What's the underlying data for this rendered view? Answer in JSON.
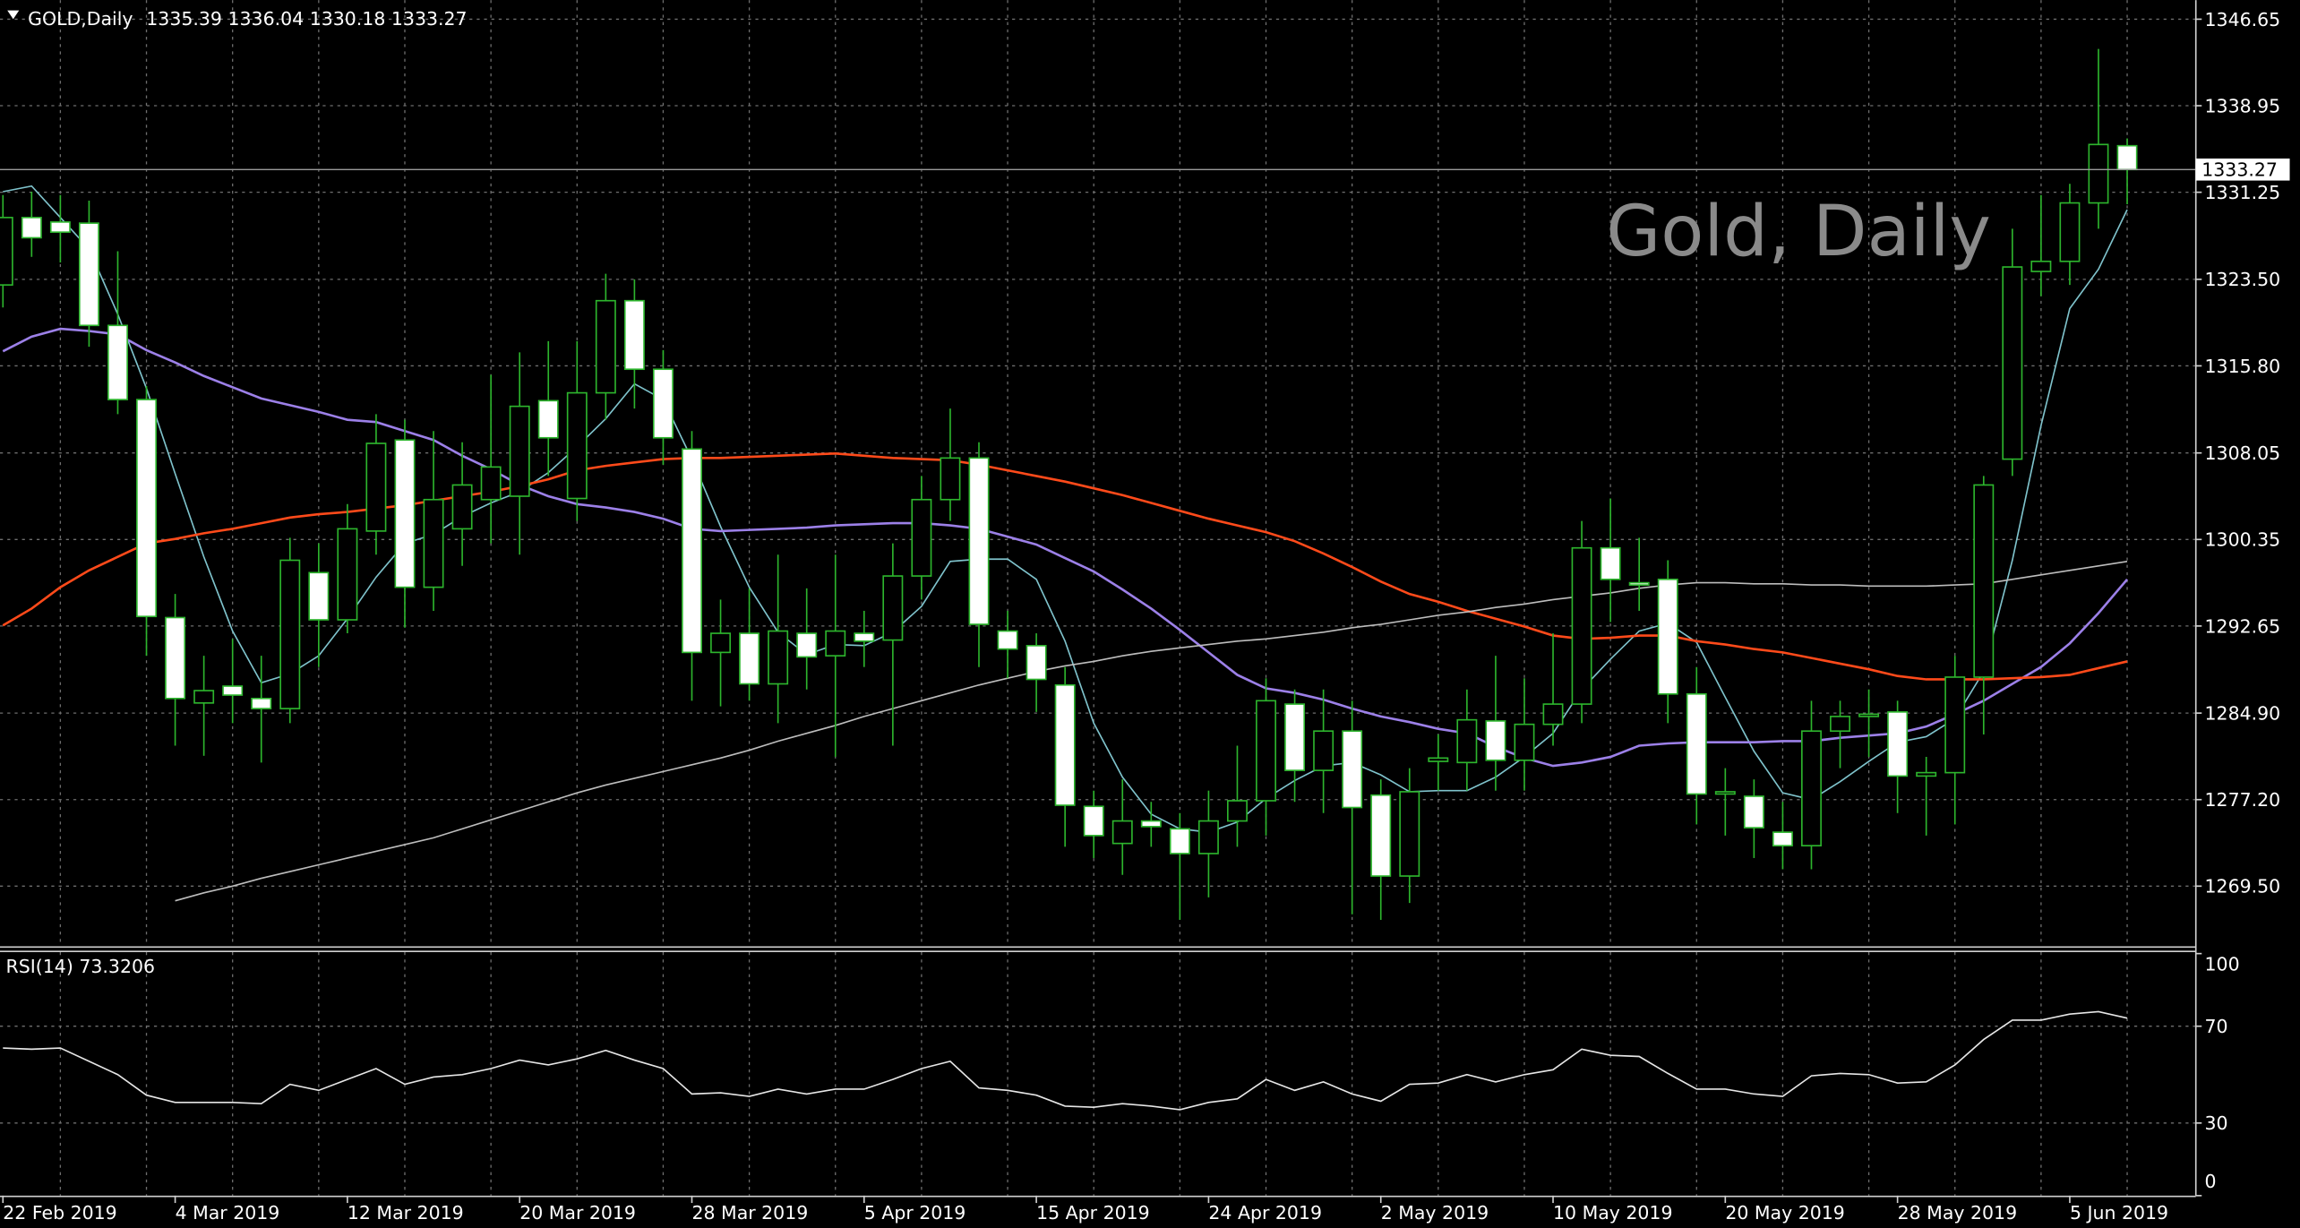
{
  "chart_data": [
    {
      "type": "candlestick",
      "symbol": "GOLD,Daily",
      "watermark": "Gold, Daily",
      "categories": [
        "22 Feb 2019",
        null,
        null,
        null,
        null,
        null,
        "4 Mar 2019",
        null,
        null,
        null,
        null,
        null,
        "12 Mar 2019",
        null,
        null,
        null,
        null,
        null,
        "20 Mar 2019",
        null,
        null,
        null,
        null,
        null,
        "28 Mar 2019",
        null,
        null,
        null,
        null,
        null,
        "5 Apr 2019",
        null,
        null,
        null,
        null,
        null,
        "15 Apr 2019",
        null,
        null,
        null,
        null,
        null,
        "24 Apr 2019",
        null,
        null,
        null,
        null,
        null,
        "2 May 2019",
        null,
        null,
        null,
        null,
        null,
        "10 May 2019",
        null,
        null,
        null,
        null,
        null,
        "20 May 2019",
        null,
        null,
        null,
        null,
        null,
        "28 May 2019",
        null,
        null,
        null,
        null,
        null,
        "5 Jun 2019",
        null,
        null
      ],
      "open": [
        1323,
        1329,
        1328.6,
        1328.5,
        1319.4,
        1312.8,
        1293.4,
        1285.8,
        1287.3,
        1286.2,
        1285.3,
        1297.4,
        1293.2,
        1301.1,
        1309.2,
        1296.1,
        1301.3,
        1303.9,
        1304.2,
        1312.7,
        1304,
        1313.4,
        1321.6,
        1315.5,
        1308.4,
        1290.3,
        1292,
        1287.5,
        1292,
        1290,
        1292,
        1291.4,
        1297.1,
        1303.9,
        1307.6,
        1292.2,
        1290.9,
        1287.4,
        1276.6,
        1273.3,
        1275.3,
        1274.6,
        1272.4,
        1275.3,
        1277.1,
        1285.7,
        1279.8,
        1283.3,
        1277.6,
        1270.4,
        1280.6,
        1280.5,
        1284.2,
        1280.7,
        1283.9,
        1285.7,
        1299.6,
        1296.5,
        1296.8,
        1286.6,
        1277.7,
        1277.5,
        1274.3,
        1273.1,
        1283.3,
        1284.6,
        1285,
        1279.3,
        1279.6,
        1288.1,
        1307.5,
        1324.2,
        1325.1,
        1330.3,
        1335.39
      ],
      "high": [
        1331,
        1331.3,
        1331,
        1330.5,
        1326,
        1314,
        1295.5,
        1290,
        1291.5,
        1290,
        1300.5,
        1300,
        1303.5,
        1311.5,
        1311,
        1310,
        1309,
        1315,
        1317,
        1318,
        1318,
        1324,
        1323.5,
        1317.2,
        1310,
        1295,
        1296,
        1299,
        1296,
        1299,
        1294,
        1300,
        1306,
        1312,
        1309,
        1294,
        1292,
        1289,
        1278,
        1279,
        1277,
        1276,
        1278,
        1282,
        1288,
        1287,
        1287,
        1286,
        1279,
        1280,
        1283,
        1287,
        1290,
        1288,
        1292,
        1302,
        1304,
        1300.5,
        1298.5,
        1289,
        1280,
        1279,
        1277,
        1286,
        1286,
        1287,
        1286,
        1281,
        1290,
        1306,
        1328,
        1331,
        1332,
        1344,
        1336.04
      ],
      "low": [
        1321,
        1325.5,
        1325,
        1317.5,
        1311.5,
        1290,
        1282,
        1281.1,
        1284,
        1280.5,
        1284,
        1289,
        1292,
        1299,
        1292.5,
        1294,
        1298,
        1300,
        1299,
        1306,
        1302,
        1311,
        1312,
        1307,
        1286,
        1285.5,
        1286,
        1284,
        1287,
        1281,
        1289,
        1282,
        1295,
        1302,
        1289,
        1288,
        1285,
        1273,
        1272,
        1270.5,
        1273,
        1266.5,
        1268.5,
        1273,
        1274,
        1277,
        1276,
        1267,
        1266.5,
        1268,
        1278,
        1278,
        1278,
        1278,
        1282,
        1284,
        1293,
        1294,
        1284,
        1275,
        1274,
        1272,
        1271,
        1271,
        1280,
        1281,
        1276,
        1274,
        1275,
        1283,
        1306,
        1322,
        1323,
        1328,
        1330.18
      ],
      "close": [
        1329,
        1327.2,
        1327.7,
        1319.4,
        1312.8,
        1293.5,
        1286.2,
        1286.9,
        1286.5,
        1285.3,
        1298.5,
        1293.2,
        1301.3,
        1308.9,
        1296.1,
        1303.9,
        1305.2,
        1306.8,
        1312.2,
        1309.4,
        1313.4,
        1321.6,
        1315.5,
        1309.4,
        1290.3,
        1292,
        1287.5,
        1292.2,
        1289.9,
        1292.2,
        1291.3,
        1297.1,
        1303.9,
        1307.6,
        1292.8,
        1290.6,
        1287.9,
        1276.7,
        1274,
        1275.3,
        1274.8,
        1272.4,
        1275.3,
        1277.1,
        1286,
        1279.8,
        1283.3,
        1276.5,
        1270.4,
        1277.9,
        1280.9,
        1284.3,
        1280.7,
        1283.9,
        1285.7,
        1299.6,
        1296.8,
        1296.3,
        1286.6,
        1277.7,
        1277.9,
        1274.7,
        1273.1,
        1283.3,
        1284.6,
        1284.8,
        1279.3,
        1279.6,
        1288.1,
        1305.2,
        1324.6,
        1325.1,
        1330.3,
        1335.5,
        1333.27
      ],
      "bull_fill": "#000000",
      "bear_fill": "#ffffff",
      "wick_color": "#2db52d",
      "series": [
        {
          "color": "#7fc3cc",
          "values": [
            1331.3,
            1331.8,
            1329.0,
            1326.2,
            1320.4,
            1313.8,
            1306.2,
            1298.8,
            1292.2,
            1287.6,
            1288.4,
            1290.0,
            1293.3,
            1297.0,
            1300.0,
            1300.8,
            1302.4,
            1303.6,
            1304.6,
            1306.3,
            1308.6,
            1311.1,
            1314.2,
            1312.8,
            1307.5,
            1301.5,
            1296.1,
            1292.1,
            1290.1,
            1291.0,
            1290.9,
            1292.1,
            1294.4,
            1298.4,
            1298.6,
            1298.6,
            1296.8,
            1291.3,
            1284.0,
            1279.2,
            1275.9,
            1274.6,
            1274.3,
            1275.2,
            1277.3,
            1278.9,
            1280.2,
            1280.5,
            1279.4,
            1277.9,
            1278.0,
            1278.0,
            1279.2,
            1281.0,
            1283.1,
            1287.0,
            1289.7,
            1292.2,
            1292.9,
            1291.2,
            1286.3,
            1281.5,
            1277.8,
            1277.2,
            1278.8,
            1280.6,
            1282.3,
            1282.8,
            1284.4,
            1288.6,
            1298.5,
            1310.5,
            1320.9,
            1324.4,
            1329.7
          ]
        },
        {
          "color": "#9c80e8",
          "values": [
            1317.1,
            1318.4,
            1319.1,
            1318.9,
            1318.6,
            1317.2,
            1316.1,
            1314.9,
            1313.9,
            1312.9,
            1312.3,
            1311.7,
            1311.0,
            1310.8,
            1310.0,
            1309.2,
            1307.8,
            1306.6,
            1305.2,
            1304.2,
            1303.5,
            1303.2,
            1302.8,
            1302.2,
            1301.3,
            1301.1,
            1301.2,
            1301.3,
            1301.4,
            1301.6,
            1301.7,
            1301.8,
            1301.8,
            1301.6,
            1301.3,
            1300.6,
            1299.9,
            1298.7,
            1297.5,
            1295.9,
            1294.2,
            1292.3,
            1290.3,
            1288.3,
            1287.1,
            1286.7,
            1286.1,
            1285.3,
            1284.6,
            1284.1,
            1283.5,
            1283.1,
            1281.9,
            1280.9,
            1280.2,
            1280.5,
            1281.0,
            1282.0,
            1282.2,
            1282.3,
            1282.3,
            1282.3,
            1282.4,
            1282.4,
            1282.7,
            1282.9,
            1283.1,
            1283.7,
            1284.8,
            1286.0,
            1287.5,
            1289.0,
            1291.1,
            1293.8,
            1296.8
          ]
        },
        {
          "color": "#ff4a1a",
          "values": [
            1292.7,
            1294.2,
            1296.1,
            1297.6,
            1298.8,
            1300.0,
            1300.4,
            1300.9,
            1301.3,
            1301.8,
            1302.3,
            1302.6,
            1302.8,
            1303.1,
            1303.4,
            1303.8,
            1304.2,
            1304.6,
            1305.1,
            1305.7,
            1306.5,
            1306.9,
            1307.2,
            1307.5,
            1307.6,
            1307.6,
            1307.7,
            1307.8,
            1307.9,
            1308.0,
            1307.8,
            1307.6,
            1307.5,
            1307.4,
            1307.0,
            1306.5,
            1306.0,
            1305.5,
            1304.9,
            1304.3,
            1303.6,
            1302.9,
            1302.2,
            1301.6,
            1301.0,
            1300.2,
            1299.1,
            1297.9,
            1296.6,
            1295.5,
            1294.8,
            1294.0,
            1293.3,
            1292.6,
            1291.8,
            1291.5,
            1291.6,
            1291.8,
            1291.8,
            1291.3,
            1291.0,
            1290.6,
            1290.3,
            1289.8,
            1289.3,
            1288.8,
            1288.2,
            1287.9,
            1287.9,
            1287.9,
            1288.0,
            1288.1,
            1288.3,
            1288.9,
            1289.5
          ]
        },
        {
          "color": "#bdbdbd",
          "values": [
            null,
            null,
            null,
            null,
            null,
            null,
            1268.2,
            1268.9,
            1269.5,
            1270.2,
            1270.8,
            1271.4,
            1272.0,
            1272.6,
            1273.2,
            1273.8,
            1274.6,
            1275.4,
            1276.2,
            1277.0,
            1277.8,
            1278.5,
            1279.1,
            1279.7,
            1280.3,
            1280.9,
            1281.6,
            1282.4,
            1283.1,
            1283.8,
            1284.6,
            1285.3,
            1286.0,
            1286.7,
            1287.4,
            1288.0,
            1288.6,
            1289.1,
            1289.5,
            1290.0,
            1290.4,
            1290.7,
            1291.0,
            1291.3,
            1291.5,
            1291.8,
            1292.1,
            1292.5,
            1292.8,
            1293.2,
            1293.6,
            1293.9,
            1294.3,
            1294.6,
            1295.0,
            1295.3,
            1295.6,
            1296.0,
            1296.3,
            1296.5,
            1296.5,
            1296.4,
            1296.4,
            1296.3,
            1296.3,
            1296.2,
            1296.2,
            1296.2,
            1296.3,
            1296.4,
            1296.8,
            1297.2,
            1297.6,
            1298.0,
            1298.4
          ]
        }
      ],
      "ylim": [
        1264.15,
        1348.35
      ],
      "yticks": [
        1346.65,
        1338.95,
        1331.25,
        {
          "value": 1323.5,
          "label": "1323.50"
        },
        {
          "value": 1315.8,
          "label": "1315.80"
        },
        1308.05,
        1300.35,
        1292.65,
        {
          "value": 1284.9,
          "label": "1284.90"
        },
        {
          "value": 1277.2,
          "label": "1277.20"
        },
        {
          "value": 1269.5,
          "label": "1269.50"
        }
      ],
      "grid": true
    },
    {
      "type": "line",
      "title": "RSI(14)",
      "color": "#e6e6e6",
      "values": [
        61,
        60.5,
        61,
        55.5,
        50,
        41.5,
        38.5,
        38.5,
        38.5,
        38,
        46,
        43.5,
        48,
        52.5,
        46,
        49,
        50,
        52.5,
        56,
        54,
        56.5,
        60,
        56,
        52.5,
        42,
        42.5,
        41,
        44,
        42,
        44,
        44,
        48,
        52.5,
        55.5,
        44.5,
        43.5,
        41.5,
        37,
        36.5,
        38,
        37,
        35.5,
        38.5,
        40,
        48,
        43.5,
        47,
        42,
        39,
        46,
        46.5,
        50,
        47,
        50,
        52,
        60.5,
        58,
        57.5,
        50.5,
        44,
        44,
        42,
        41,
        49.5,
        50.5,
        50,
        46.5,
        47,
        54,
        64.5,
        72.5,
        72.5,
        75,
        76,
        73.3206
      ],
      "ylim": [
        0,
        100
      ],
      "yticks": [
        100,
        70,
        30,
        0
      ],
      "grid": true
    }
  ]
}
